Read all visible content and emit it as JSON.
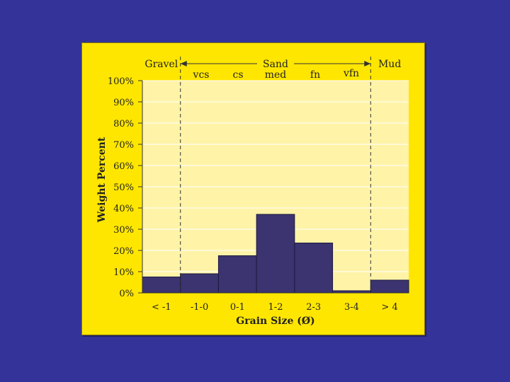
{
  "colors": {
    "background": "#333399",
    "panel": "#ffe600",
    "plot_area": "#fff3a8",
    "bar_fill": "#3b3470",
    "bar_stroke": "#1d1a40",
    "text": "#222222"
  },
  "chart_data": {
    "type": "bar",
    "title": "",
    "xlabel": "Grain Size (Ø)",
    "ylabel": "Weight Percent",
    "categories": [
      "< -1",
      "-1-0",
      "0-1",
      "1-2",
      "2-3",
      "3-4",
      "> 4"
    ],
    "values": [
      7.5,
      9,
      17.5,
      37,
      23.5,
      1,
      6
    ],
    "ylim": [
      0,
      100
    ],
    "yticks": [
      "0%",
      "10%",
      "20%",
      "30%",
      "40%",
      "50%",
      "60%",
      "70%",
      "80%",
      "90%",
      "100%"
    ],
    "grid": true,
    "size_classes": {
      "gravel": "Gravel",
      "sand": "Sand",
      "mud": "Mud",
      "vcs": "vcs",
      "cs": "cs",
      "med": "med",
      "fn": "fn",
      "vfn": "vfn"
    }
  }
}
